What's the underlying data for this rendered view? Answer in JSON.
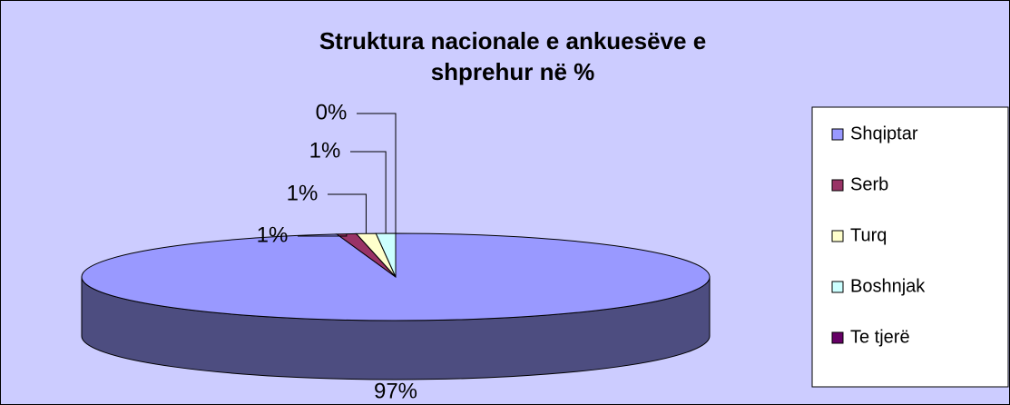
{
  "chart_data": {
    "type": "pie",
    "title": "Struktura nacionale e ankuesëve e shprehur në %",
    "categories": [
      "Shqiptar",
      "Serb",
      "Turq",
      "Boshnjak",
      "Te tjerë"
    ],
    "values": [
      97,
      1,
      1,
      1,
      0
    ],
    "value_labels": [
      "97%",
      "1%",
      "1%",
      "1%",
      "0%"
    ],
    "colors": [
      "#9999ff",
      "#993366",
      "#ffffcc",
      "#ccffff",
      "#660066"
    ],
    "legend": "right"
  }
}
